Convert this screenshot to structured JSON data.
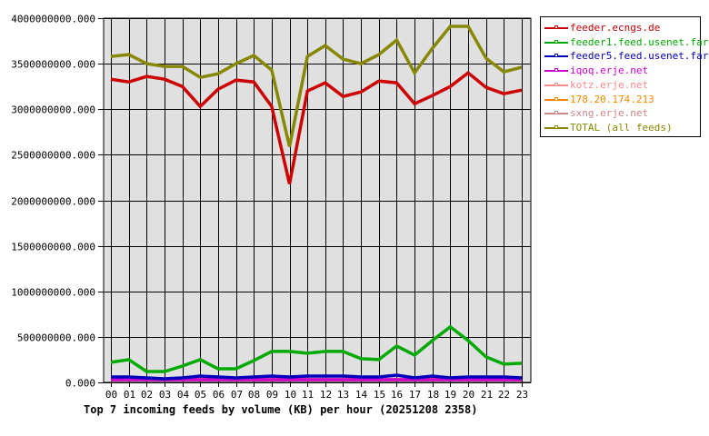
{
  "chart_data": {
    "type": "line",
    "title": "Top 7 incoming feeds by volume (KB) per hour (20251208 2358)",
    "xlabel": "",
    "ylabel": "",
    "ylim": [
      0,
      4000000000
    ],
    "grid": true,
    "legend_position": "right",
    "yticks": [
      "0.000",
      "500000000.000",
      "1000000000.000",
      "1500000000.000",
      "2000000000.000",
      "2500000000.000",
      "3000000000.000",
      "3500000000.000",
      "4000000000.000"
    ],
    "ytick_values": [
      0,
      500000000,
      1000000000,
      1500000000,
      2000000000,
      2500000000,
      3000000000,
      3500000000,
      4000000000
    ],
    "categories": [
      "00",
      "01",
      "02",
      "03",
      "04",
      "05",
      "06",
      "07",
      "08",
      "09",
      "10",
      "11",
      "12",
      "13",
      "14",
      "15",
      "16",
      "17",
      "18",
      "19",
      "20",
      "21",
      "22",
      "23"
    ],
    "series": [
      {
        "name": "feeder.ecngs.de",
        "color": "#cc0000",
        "values": [
          3330000000,
          3300000000,
          3360000000,
          3330000000,
          3250000000,
          3030000000,
          3220000000,
          3320000000,
          3300000000,
          3030000000,
          2180000000,
          3200000000,
          3290000000,
          3140000000,
          3190000000,
          3310000000,
          3290000000,
          3060000000,
          3150000000,
          3250000000,
          3400000000,
          3240000000,
          3170000000,
          3210000000
        ]
      },
      {
        "name": "feeder1.feed.usenet.farm",
        "color": "#00aa00",
        "values": [
          220000000,
          250000000,
          120000000,
          120000000,
          180000000,
          250000000,
          150000000,
          150000000,
          240000000,
          340000000,
          340000000,
          320000000,
          340000000,
          340000000,
          260000000,
          250000000,
          400000000,
          300000000,
          460000000,
          610000000,
          460000000,
          280000000,
          200000000,
          210000000
        ]
      },
      {
        "name": "feeder5.feed.usenet.farm",
        "color": "#0000bb",
        "values": [
          60000000,
          60000000,
          50000000,
          40000000,
          50000000,
          70000000,
          60000000,
          50000000,
          60000000,
          70000000,
          60000000,
          70000000,
          70000000,
          70000000,
          60000000,
          60000000,
          80000000,
          50000000,
          70000000,
          50000000,
          60000000,
          60000000,
          60000000,
          50000000
        ]
      },
      {
        "name": "iqoq.erje.net",
        "color": "#cc00cc",
        "values": [
          0,
          0,
          0,
          0,
          0,
          0,
          0,
          0,
          0,
          0,
          0,
          0,
          0,
          0,
          0,
          0,
          0,
          0,
          0,
          0,
          0,
          0,
          0,
          0
        ]
      },
      {
        "name": "kotz.erje.net",
        "color": "#ff8888",
        "values": [
          0,
          0,
          0,
          0,
          0,
          0,
          0,
          0,
          0,
          0,
          0,
          0,
          0,
          0,
          0,
          0,
          0,
          0,
          0,
          0,
          0,
          0,
          0,
          0
        ]
      },
      {
        "name": "178.20.174.213",
        "color": "#ff8800",
        "values": [
          0,
          0,
          0,
          0,
          0,
          0,
          0,
          0,
          0,
          0,
          0,
          0,
          0,
          0,
          0,
          0,
          0,
          0,
          0,
          0,
          0,
          0,
          0,
          0
        ]
      },
      {
        "name": "sxng.erje.net",
        "color": "#cc8888",
        "values": [
          0,
          0,
          0,
          0,
          0,
          0,
          0,
          0,
          0,
          0,
          0,
          0,
          0,
          0,
          0,
          0,
          0,
          0,
          0,
          0,
          0,
          0,
          0,
          0
        ]
      },
      {
        "name": "TOTAL (all feeds)",
        "color": "#888800",
        "values": [
          3580000000,
          3600000000,
          3500000000,
          3470000000,
          3470000000,
          3350000000,
          3390000000,
          3500000000,
          3590000000,
          3430000000,
          2590000000,
          3580000000,
          3700000000,
          3550000000,
          3500000000,
          3600000000,
          3760000000,
          3400000000,
          3670000000,
          3910000000,
          3910000000,
          3560000000,
          3410000000,
          3460000000
        ]
      }
    ]
  },
  "colors": {
    "plot_background": "#e0e0e0",
    "grid": "#000000",
    "axis": "#000000"
  }
}
